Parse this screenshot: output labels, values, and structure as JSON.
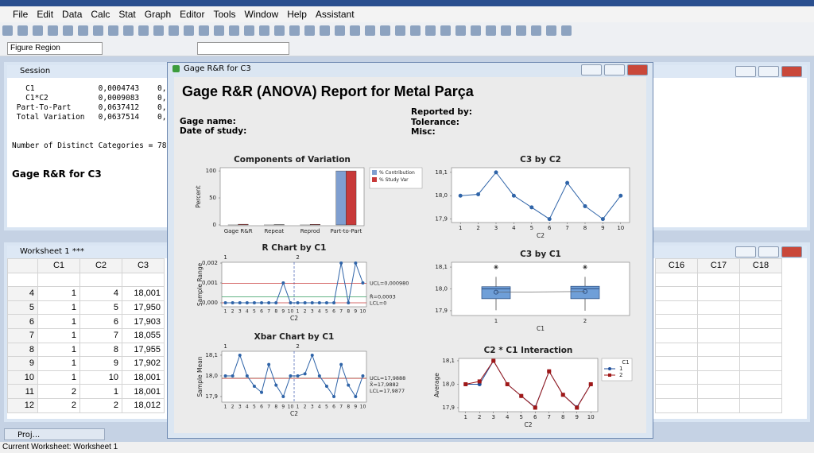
{
  "menu": [
    "File",
    "Edit",
    "Data",
    "Calc",
    "Stat",
    "Graph",
    "Editor",
    "Tools",
    "Window",
    "Help",
    "Assistant"
  ],
  "toolbar": {
    "region": "Figure Region"
  },
  "session": {
    "title": "Session",
    "lines": [
      "   C1              0,0004743    0,",
      "   C1*C2           0,0009083    0,",
      " Part-To-Part      0,0637412    0,",
      " Total Variation   0,0637514    0,"
    ],
    "distinct": "Number of Distinct Categories = 78",
    "heading": "Gage R&R for C3"
  },
  "worksheet": {
    "title": "Worksheet 1 ***",
    "columns": [
      "C1",
      "C2",
      "C3"
    ],
    "right_columns": [
      "C16",
      "C17",
      "C18"
    ],
    "rows": [
      [
        "4",
        "1",
        "4",
        "18,001"
      ],
      [
        "5",
        "1",
        "5",
        "17,950"
      ],
      [
        "6",
        "1",
        "6",
        "17,903"
      ],
      [
        "7",
        "1",
        "7",
        "18,055"
      ],
      [
        "8",
        "1",
        "8",
        "17,955"
      ],
      [
        "9",
        "1",
        "9",
        "17,902"
      ],
      [
        "10",
        "1",
        "10",
        "18,001"
      ],
      [
        "11",
        "2",
        "1",
        "18,001"
      ],
      [
        "12",
        "2",
        "2",
        "18,012"
      ]
    ]
  },
  "report": {
    "window_title": "Gage R&R for C3",
    "title": "Gage R&R (ANOVA) Report for Metal Parça",
    "fields_left": [
      "Gage name:",
      "Date of study:"
    ],
    "fields_right": [
      "Reported by:",
      "Tolerance:",
      "Misc:"
    ]
  },
  "chart_data": [
    {
      "type": "bar",
      "title": "Components of Variation",
      "ylabel": "Percent",
      "categories": [
        "Gage R&R",
        "Repeat",
        "Reprod",
        "Part-to-Part"
      ],
      "series": [
        {
          "name": "% Contribution",
          "color": "#7f9fd0",
          "values": [
            0.02,
            0.01,
            0.01,
            99.98
          ]
        },
        {
          "name": "% Study Var",
          "color": "#c83a3a",
          "values": [
            1.26,
            0.6,
            1.1,
            99.99
          ]
        }
      ],
      "ylim": [
        -1.5,
        106
      ],
      "yticks": [
        0,
        50,
        100
      ]
    },
    {
      "type": "line",
      "title": "C3 by C2",
      "xlabel": "C2",
      "x": [
        1,
        2,
        3,
        4,
        5,
        6,
        7,
        8,
        9,
        10
      ],
      "values": [
        18.0,
        18.006,
        18.1,
        18.0,
        17.95,
        17.9,
        18.055,
        17.955,
        17.9,
        18.0
      ],
      "color": "#2f64a8",
      "xlim": [
        0.5,
        10.5
      ],
      "xticks": [
        1,
        2,
        3,
        4,
        5,
        6,
        7,
        8,
        9,
        10
      ],
      "ylim": [
        17.885,
        18.12
      ],
      "yticks": [
        {
          "value": 17.9,
          "label": "17,9"
        },
        {
          "value": 18.0,
          "label": "18,0"
        },
        {
          "value": 18.1,
          "label": "18,1"
        }
      ]
    },
    {
      "type": "control",
      "title": "R Chart by C1",
      "xlabel": "C2",
      "ylabel": "Sample Range",
      "groups": [
        1,
        2
      ],
      "categories": [
        1,
        2,
        3,
        4,
        5,
        6,
        7,
        8,
        9,
        10,
        1,
        2,
        3,
        4,
        5,
        6,
        7,
        8,
        9,
        10
      ],
      "values": [
        0,
        0,
        0,
        0,
        0,
        0,
        0,
        0,
        0.001,
        0,
        0,
        0,
        0,
        0,
        0,
        0,
        0.002,
        0,
        0.002,
        0.001
      ],
      "color": "#2f64a8",
      "ylim": [
        -0.0002,
        0.00204
      ],
      "yticks": [
        {
          "value": 0,
          "label": "0,000"
        },
        {
          "value": 0.001,
          "label": "0,001"
        },
        {
          "value": 0.002,
          "label": "0,002"
        }
      ],
      "limits": [
        {
          "value": 0.00098,
          "label": "UCL=0,000980",
          "color": "#c83a3a"
        },
        {
          "value": 0.0003,
          "label": "R̄=0,0003",
          "color": "#2e9a5c"
        },
        {
          "value": 0,
          "label": "LCL=0",
          "color": "#c83a3a"
        }
      ]
    },
    {
      "type": "box",
      "title": "C3 by C1",
      "xlabel": "C1",
      "x": [
        1,
        2
      ],
      "xlim": [
        0.5,
        2.5
      ],
      "xticks": [
        1,
        2
      ],
      "color": "#6f9fd8",
      "boxes": [
        {
          "min": 17.902,
          "q1": 17.955,
          "median": 18.0,
          "q3": 18.01,
          "max": 18.055,
          "mean": 17.985,
          "outliers": [
            18.1
          ]
        },
        {
          "min": 17.9,
          "q1": 17.955,
          "median": 18.001,
          "q3": 18.012,
          "max": 18.055,
          "mean": 17.988,
          "outliers": [
            18.1
          ]
        }
      ],
      "ylim": [
        17.878,
        18.122
      ],
      "yticks": [
        {
          "value": 17.9,
          "label": "17,9"
        },
        {
          "value": 18.0,
          "label": "18,0"
        },
        {
          "value": 18.1,
          "label": "18,1"
        }
      ]
    },
    {
      "type": "control",
      "title": "Xbar Chart by C1",
      "xlabel": "C2",
      "ylabel": "Sample Mean",
      "groups": [
        1,
        2
      ],
      "categories": [
        1,
        2,
        3,
        4,
        5,
        6,
        7,
        8,
        9,
        10,
        1,
        2,
        3,
        4,
        5,
        6,
        7,
        8,
        9,
        10
      ],
      "values": [
        18.0,
        18.0,
        18.1,
        18.0,
        17.95,
        17.92,
        18.055,
        17.955,
        17.9,
        18.0,
        18.0,
        18.01,
        18.1,
        18.0,
        17.95,
        17.9,
        18.055,
        17.955,
        17.9,
        18.0
      ],
      "color": "#2f64a8",
      "ylim": [
        17.873,
        18.119
      ],
      "yticks": [
        {
          "value": 17.9,
          "label": "17,9"
        },
        {
          "value": 18.0,
          "label": "18,0"
        },
        {
          "value": 18.1,
          "label": "18,1"
        }
      ],
      "limits": [
        {
          "value": 17.9888,
          "label": "UCL=17,9888",
          "color": "#c83a3a"
        },
        {
          "value": 17.9882,
          "label": "X̄=17,9882",
          "color": "#2e9a5c"
        },
        {
          "value": 17.9877,
          "label": "LCL=17,9877",
          "color": "#c83a3a"
        }
      ]
    },
    {
      "type": "line",
      "title": "C2 * C1 Interaction",
      "xlabel": "C2",
      "ylabel": "Average",
      "legend_title": "C1",
      "x": [
        1,
        2,
        3,
        4,
        5,
        6,
        7,
        8,
        9,
        10
      ],
      "series": [
        {
          "name": "1",
          "color": "#1f4e9a",
          "marker": "circle",
          "values": [
            18.0,
            18.0,
            18.1,
            18.0,
            17.95,
            17.902,
            18.055,
            17.955,
            17.902,
            18.0
          ]
        },
        {
          "name": "2",
          "color": "#a01818",
          "marker": "square",
          "values": [
            18.0,
            18.012,
            18.1,
            18.0,
            17.95,
            17.9,
            18.055,
            17.955,
            17.9,
            18.0
          ]
        }
      ],
      "xlim": [
        0.5,
        10.5
      ],
      "xticks": [
        1,
        2,
        3,
        4,
        5,
        6,
        7,
        8,
        9,
        10
      ],
      "ylim": [
        17.883,
        18.11
      ],
      "yticks": [
        {
          "value": 17.9,
          "label": "17,9"
        },
        {
          "value": 18.0,
          "label": "18,0"
        },
        {
          "value": 18.1,
          "label": "18,1"
        }
      ]
    }
  ],
  "project": "Proj...",
  "status": "Current Worksheet: Worksheet 1"
}
